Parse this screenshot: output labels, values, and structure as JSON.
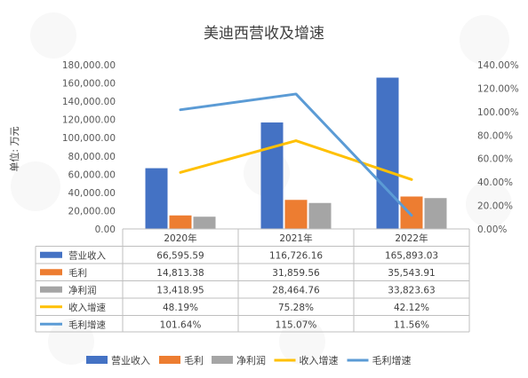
{
  "chart_data": {
    "type": "bar",
    "title": "美迪西营收及增速",
    "ylabel": "单位: 万元",
    "categories": [
      "2020年",
      "2021年",
      "2022年"
    ],
    "ylim": [
      0,
      180000
    ],
    "y2lim": [
      0,
      1.4
    ],
    "y_ticks": [
      "0.00",
      "20,000.00",
      "40,000.00",
      "60,000.00",
      "80,000.00",
      "100,000.00",
      "120,000.00",
      "140,000.00",
      "160,000.00",
      "180,000.00"
    ],
    "y2_ticks": [
      "0.00%",
      "20.00%",
      "40.00%",
      "60.00%",
      "80.00%",
      "100.00%",
      "120.00%",
      "140.00%"
    ],
    "series": [
      {
        "name": "营业收入",
        "kind": "bar",
        "axis": "left",
        "color": "#4472C4",
        "values": [
          66595.59,
          116726.16,
          165893.03
        ],
        "labels": [
          "66,595.59",
          "116,726.16",
          "165,893.03"
        ]
      },
      {
        "name": "毛利",
        "kind": "bar",
        "axis": "left",
        "color": "#ED7D31",
        "values": [
          14813.38,
          31859.56,
          35543.91
        ],
        "labels": [
          "14,813.38",
          "31,859.56",
          "35,543.91"
        ]
      },
      {
        "name": "净利润",
        "kind": "bar",
        "axis": "left",
        "color": "#A5A5A5",
        "values": [
          13418.95,
          28464.76,
          33823.63
        ],
        "labels": [
          "13,418.95",
          "28,464.76",
          "33,823.63"
        ]
      },
      {
        "name": "收入增速",
        "kind": "line",
        "axis": "right",
        "color": "#FFC000",
        "values": [
          0.4819,
          0.7528,
          0.4212
        ],
        "labels": [
          "48.19%",
          "75.28%",
          "42.12%"
        ]
      },
      {
        "name": "毛利增速",
        "kind": "line",
        "axis": "right",
        "color": "#5B9BD5",
        "values": [
          1.0164,
          1.1507,
          0.1156
        ],
        "labels": [
          "101.64%",
          "115.07%",
          "11.56%"
        ]
      }
    ],
    "legend_position": "bottom",
    "data_table": true,
    "grid": false
  }
}
